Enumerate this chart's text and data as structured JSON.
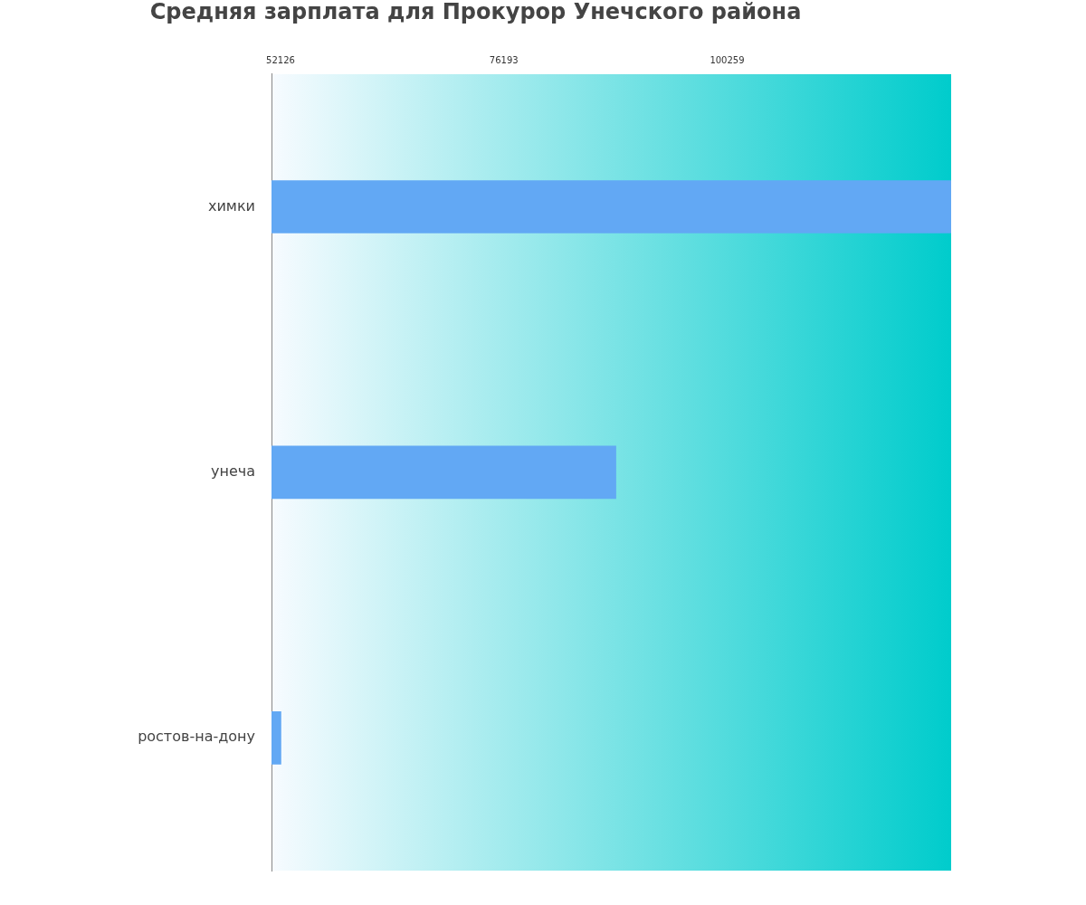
{
  "chart_data": {
    "type": "bar",
    "orientation": "horizontal",
    "title": "Средняя зарплата для Прокурор Унечского района",
    "categories": [
      "химки",
      "унеча",
      "ростов-на-дону"
    ],
    "values": [
      124400,
      88300,
      52200
    ],
    "color": "#62a8f4",
    "xlim": [
      51150,
      124400
    ],
    "xticks": [
      52126,
      76193,
      100259
    ],
    "grid": false,
    "legend": false
  }
}
